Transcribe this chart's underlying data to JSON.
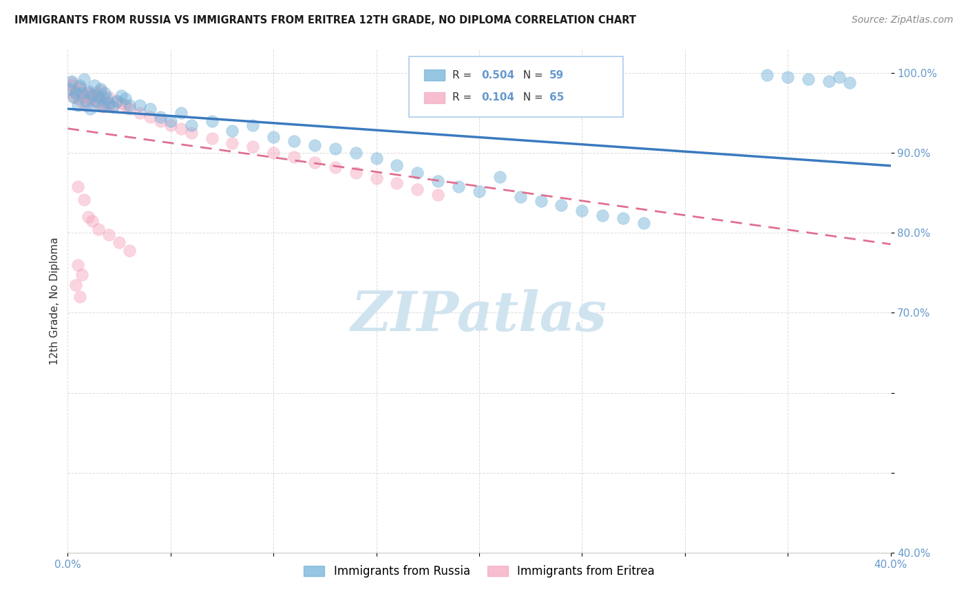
{
  "title": "IMMIGRANTS FROM RUSSIA VS IMMIGRANTS FROM ERITREA 12TH GRADE, NO DIPLOMA CORRELATION CHART",
  "source": "Source: ZipAtlas.com",
  "ylabel": "12th Grade, No Diploma",
  "xlim": [
    0.0,
    0.4
  ],
  "ylim": [
    0.4,
    1.03
  ],
  "xtick_positions": [
    0.0,
    0.05,
    0.1,
    0.15,
    0.2,
    0.25,
    0.3,
    0.35,
    0.4
  ],
  "ytick_positions": [
    0.4,
    0.5,
    0.6,
    0.7,
    0.8,
    0.9,
    1.0
  ],
  "xtick_labels": [
    "0.0%",
    "",
    "",
    "",
    "",
    "",
    "",
    "",
    "40.0%"
  ],
  "ytick_labels": [
    "40.0%",
    "",
    "",
    "70.0%",
    "80.0%",
    "90.0%",
    "100.0%"
  ],
  "legend_russia": "Immigrants from Russia",
  "legend_eritrea": "Immigrants from Eritrea",
  "R_russia": 0.504,
  "N_russia": 59,
  "R_eritrea": 0.104,
  "N_eritrea": 65,
  "color_russia": "#6baed6",
  "color_eritrea": "#f4a3bc",
  "line_russia": "#3a7abf",
  "line_eritrea": "#e07090",
  "background_color": "#ffffff",
  "grid_color": "#cccccc",
  "tick_color": "#6699cc",
  "watermark_color": "#d0e4f0",
  "watermark": "ZIPatlas"
}
